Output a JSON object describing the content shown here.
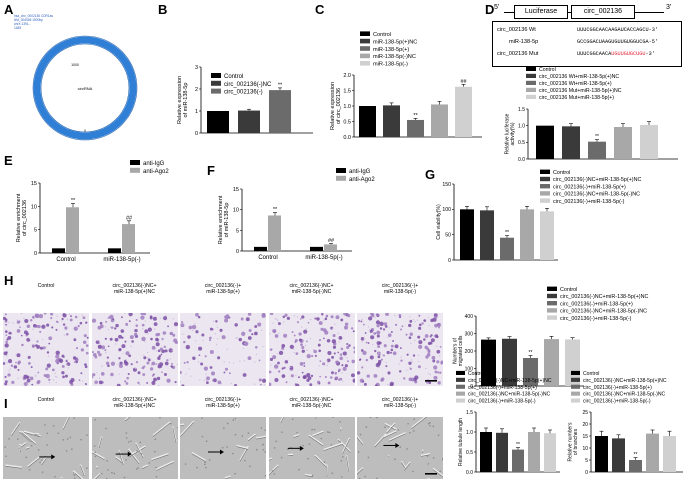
{
  "panels": {
    "A": "A",
    "B": "B",
    "C": "C",
    "D": "D",
    "E": "E",
    "F": "F",
    "G": "G",
    "H": "H",
    "I": "I"
  },
  "colors": {
    "black": "#000000",
    "dark": "#3a3a3a",
    "mid": "#6b6b6b",
    "light": "#a8a8a8",
    "pale": "#d0d0d0",
    "ring": "#2f7fd6",
    "seq_red": "#e0263a"
  },
  "A": {
    "ring_label": "CDR1as",
    "ring_tick_right": "1500",
    "ring_tick_bottom": "0",
    "ring_tick_top": "1000",
    "inner_label": "circRNA",
    "meta": [
      "hsa_circ_0002136 CDR1as",
      "NM_004065 1500bp",
      "chrX:1391...",
      "1485"
    ]
  },
  "B": {
    "ylabel": "Relative expression of miR-138-5p",
    "legend": [
      "Control",
      "circ_002136(-)NC",
      "circ_002136(-)"
    ],
    "chart_data": {
      "type": "bar",
      "categories": [
        "Control",
        "circ_002136(-)NC",
        "circ_002136(-)"
      ],
      "values": [
        1.0,
        1.02,
        1.95
      ],
      "errors": [
        0.0,
        0.06,
        0.1
      ],
      "ylim": [
        0,
        3
      ],
      "yticks": [
        "0",
        "1",
        "2",
        "3"
      ],
      "annotations": [
        "",
        "",
        "**"
      ]
    }
  },
  "C": {
    "ylabel": "Relative expression of circ_002136",
    "legend": [
      "Control",
      "miR-138-5p(+)NC",
      "miR-138-5p(+)",
      "miR-138-5p(-)NC",
      "miR-138-5p(-)"
    ],
    "chart_data": {
      "type": "bar",
      "categories": [
        "Control",
        "miR-138-5p(+)NC",
        "miR-138-5p(+)",
        "miR-138-5p(-)NC",
        "miR-138-5p(-)"
      ],
      "values": [
        1.0,
        1.02,
        0.55,
        1.05,
        1.62
      ],
      "errors": [
        0.0,
        0.08,
        0.05,
        0.1,
        0.08
      ],
      "ylim": [
        0,
        2.0
      ],
      "yticks": [
        "0.0",
        "0.5",
        "1.0",
        "1.5",
        "2.0"
      ],
      "annotations": [
        "",
        "",
        "**",
        "",
        "##"
      ]
    }
  },
  "D": {
    "prime5": "5'",
    "prime3": "3'",
    "box1": "Luciferase",
    "box2": "circ_002136",
    "seq_names": [
      "circ_002136 Wt",
      "miR-138-5p",
      "circ_002136 Mut"
    ],
    "seq_wt": "UUUCGGCAACAAGAUCACCAGCU-3'",
    "seq_mir": "GCCGGACUAAGUGUUGUGGUCGA-5'",
    "seq_mut_black": "UUUCGGCAACA",
    "seq_mut_red": "UGUUGUGCUGU",
    "seq_mut_end": "-3'",
    "ylabel": "Relative luciferase activity(%)",
    "legend": [
      "Control",
      "circ_002136 Wt+miR-138-5p(+)NC",
      "circ_002136 Wt+miR-138-5p(+)",
      "circ_002136 Mut+miR-138-5p(+)NC",
      "circ_002136 Mut+miR-138-5p(+)"
    ],
    "chart_data": {
      "type": "bar",
      "categories": [
        "Control",
        "circ_002136 Wt+miR-138-5p(+)NC",
        "circ_002136 Wt+miR-138-5p(+)",
        "circ_002136 Mut+miR-138-5p(+)NC",
        "circ_002136 Mut+miR-138-5p(+)"
      ],
      "values": [
        1.0,
        0.98,
        0.52,
        0.96,
        1.02
      ],
      "errors": [
        0.0,
        0.08,
        0.06,
        0.1,
        0.1
      ],
      "ylim": [
        0,
        1.5
      ],
      "yticks": [
        "0.0",
        "0.5",
        "1.0",
        "1.5"
      ],
      "annotations": [
        "",
        "",
        "**",
        "",
        ""
      ]
    }
  },
  "E": {
    "ylabel": "Relative enrichment of circ_002136",
    "legend": [
      "anti-IgG",
      "anti-Ago2"
    ],
    "chart_data": {
      "type": "bar",
      "categories": [
        "Control",
        "miR-138-5p(-)"
      ],
      "series": [
        {
          "name": "anti-IgG",
          "values": [
            1.0,
            1.0
          ],
          "errors": [
            0,
            0
          ]
        },
        {
          "name": "anti-Ago2",
          "values": [
            9.8,
            6.2
          ],
          "errors": [
            0.8,
            0.7
          ]
        }
      ],
      "ylim": [
        0,
        15
      ],
      "yticks": [
        "0",
        "5",
        "10",
        "15"
      ],
      "annotations": [
        [
          "",
          "**"
        ],
        [
          "",
          "##"
        ]
      ]
    }
  },
  "F": {
    "ylabel": "Relative enrichment of miR-138-5p",
    "legend": [
      "anti-IgG",
      "anti-Ago2"
    ],
    "chart_data": {
      "type": "bar",
      "categories": [
        "Control",
        "miR-138-5p(-)"
      ],
      "series": [
        {
          "name": "anti-IgG",
          "values": [
            1.0,
            1.0
          ],
          "errors": [
            0,
            0
          ]
        },
        {
          "name": "anti-Ago2",
          "values": [
            8.6,
            1.6
          ],
          "errors": [
            0.7,
            0.2
          ]
        }
      ],
      "ylim": [
        0,
        15
      ],
      "yticks": [
        "0",
        "5",
        "10",
        "15"
      ],
      "annotations": [
        [
          "",
          "**"
        ],
        [
          "",
          "##"
        ]
      ]
    }
  },
  "G": {
    "ylabel": "Cell viability(%)",
    "legend": [
      "Control",
      "circ_002136(-)NC+miR-138-5p(+)NC",
      "circ_002136(-)+miR-138-5p(+)",
      "circ_002136(-)NC+miR-138-5p(-)NC",
      "circ_002136(-)+miR-138-5p(-)"
    ],
    "chart_data": {
      "type": "bar",
      "categories": [
        "Control",
        "circ_002136(-)NC+miR-138-5p(+)NC",
        "circ_002136(-)+miR-138-5p(+)",
        "circ_002136(-)NC+miR-138-5p(-)NC",
        "circ_002136(-)+miR-138-5p(-)"
      ],
      "values": [
        100,
        98,
        44,
        100,
        96
      ],
      "errors": [
        6,
        7,
        4,
        6,
        6
      ],
      "ylim": [
        0,
        150
      ],
      "yticks": [
        "0",
        "50",
        "100",
        "150"
      ],
      "annotations": [
        "",
        "",
        "**",
        "",
        ""
      ]
    }
  },
  "H": {
    "captions": [
      "Control",
      "circ_002136(-)NC+\nmiR-138-5p(+)NC",
      "circ_002136(-)+\nmiR-138-5p(+)",
      "circ_002136(-)NC+\nmiR-138-5p(-)NC",
      "circ_002136(-)+\nmiR-138-5p(-)"
    ],
    "ylabel": "Numbers of migrated cells",
    "legend": [
      "Control",
      "circ_002136(-)NC+miR-138-5p(+)NC",
      "circ_002136(-)+miR-138-5p(+)",
      "circ_002136(-)NC+miR-138-5p(-)NC",
      "circ_002136(-)+miR-138-5p(-)"
    ],
    "chart_data": {
      "type": "bar",
      "categories": [
        "Control",
        "circ_002136(-)NC+miR-138-5p(+)NC",
        "circ_002136(-)+miR-138-5p(+)",
        "circ_002136(-)NC+miR-138-5p(-)NC",
        "circ_002136(-)+miR-138-5p(-)"
      ],
      "values": [
        265,
        270,
        160,
        268,
        266
      ],
      "errors": [
        10,
        12,
        14,
        16,
        10
      ],
      "ylim": [
        0,
        400
      ],
      "yticks": [
        "0",
        "100",
        "200",
        "300",
        "400"
      ],
      "annotations": [
        "",
        "",
        "**",
        "",
        ""
      ]
    }
  },
  "I": {
    "captions": [
      "Control",
      "circ_002136(-)NC+\nmiR-138-5p(+)NC",
      "circ_002136(-)+\nmiR-138-5p(+)",
      "circ_002136(-)NC+\nmiR-138-5p(-)NC",
      "circ_002136(-)+\nmiR-138-5p(-)"
    ],
    "ylabel1": "Relative tubule length",
    "ylabel2": "Relative numbers of branches",
    "legend": [
      "Control",
      "circ_002136(-)NC+miR-138-5p(+)NC",
      "circ_002136(-)+miR-138-5p(+)",
      "circ_002136(-)NC+miR-138-5p(-)NC",
      "circ_002136(-)+miR-138-5p(-)"
    ],
    "chart_data": [
      {
        "type": "bar",
        "categories": [
          "Control",
          "circ_002136(-)NC+miR-138-5p(+)NC",
          "circ_002136(-)+miR-138-5p(+)",
          "circ_002136(-)NC+miR-138-5p(-)NC",
          "circ_002136(-)+miR-138-5p(-)"
        ],
        "values": [
          1.0,
          0.98,
          0.56,
          1.0,
          0.97
        ],
        "errors": [
          0.1,
          0.1,
          0.05,
          0.1,
          0.08
        ],
        "ylim": [
          0,
          1.5
        ],
        "yticks": [
          "0.0",
          "0.5",
          "1.0",
          "1.5"
        ],
        "annotations": [
          "",
          "",
          "**",
          "",
          ""
        ]
      },
      {
        "type": "bar",
        "categories": [
          "Control",
          "circ_002136(-)NC+miR-138-5p(+)NC",
          "circ_002136(-)+miR-138-5p(+)",
          "circ_002136(-)NC+miR-138-5p(-)NC",
          "circ_002136(-)+miR-138-5p(-)"
        ],
        "values": [
          15,
          14,
          5,
          16,
          15
        ],
        "errors": [
          2,
          1.5,
          1,
          1.5,
          2
        ],
        "ylim": [
          0,
          25
        ],
        "yticks": [
          "0",
          "5",
          "10",
          "15",
          "20",
          "25"
        ],
        "annotations": [
          "",
          "",
          "**",
          "",
          ""
        ]
      }
    ]
  }
}
